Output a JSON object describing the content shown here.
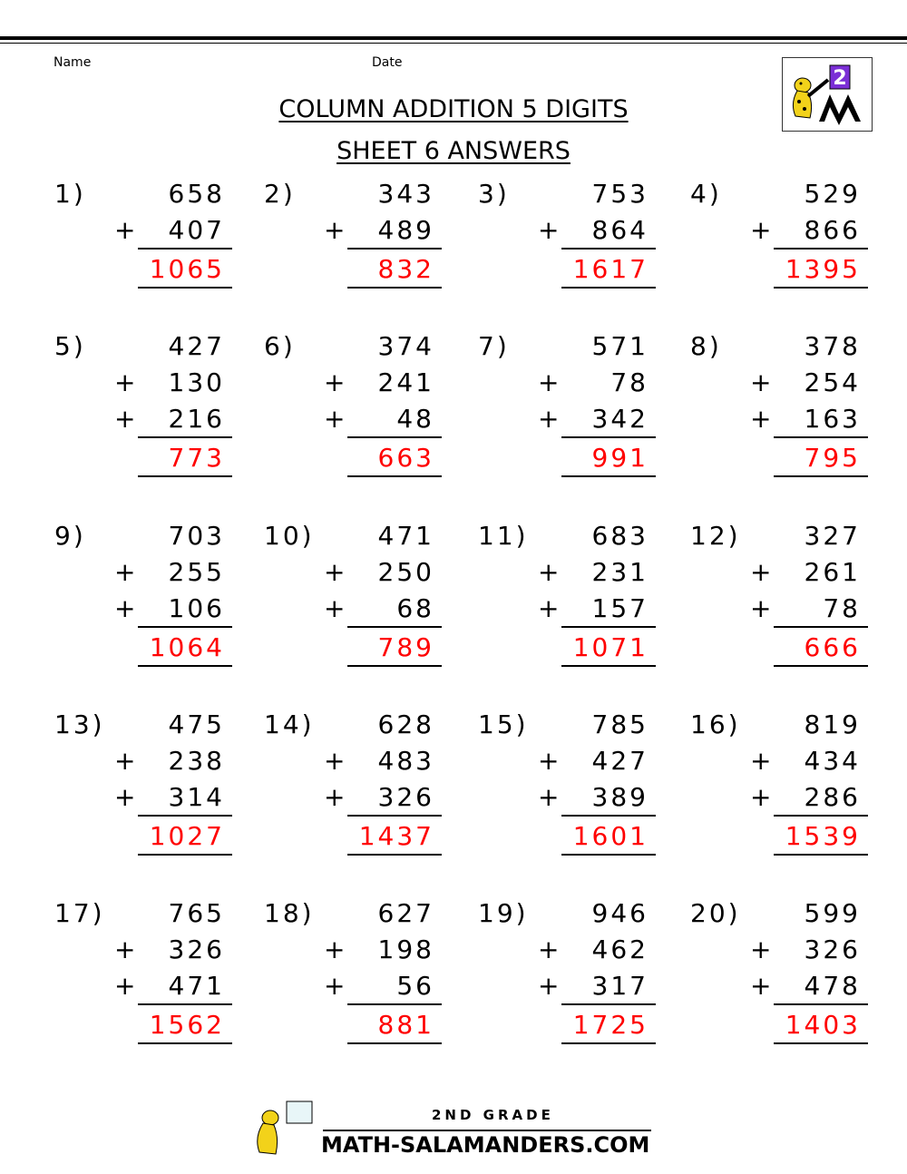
{
  "header": {
    "name_label": "Name",
    "date_label": "Date",
    "title": "COLUMN ADDITION 5 DIGITS",
    "subtitle": "SHEET 6 ANSWERS"
  },
  "logo": {
    "badge": "2",
    "badge_color": "#7b2fd6"
  },
  "colors": {
    "answer": "#ff0000"
  },
  "problems": [
    {
      "label": "1)",
      "addends": [
        "658",
        "407"
      ],
      "answer": "1065"
    },
    {
      "label": "2)",
      "addends": [
        "343",
        "489"
      ],
      "answer": "832"
    },
    {
      "label": "3)",
      "addends": [
        "753",
        "864"
      ],
      "answer": "1617"
    },
    {
      "label": "4)",
      "addends": [
        "529",
        "866"
      ],
      "answer": "1395"
    },
    {
      "label": "5)",
      "addends": [
        "427",
        "130",
        "216"
      ],
      "answer": "773"
    },
    {
      "label": "6)",
      "addends": [
        "374",
        "241",
        "48"
      ],
      "answer": "663"
    },
    {
      "label": "7)",
      "addends": [
        "571",
        "78",
        "342"
      ],
      "answer": "991"
    },
    {
      "label": "8)",
      "addends": [
        "378",
        "254",
        "163"
      ],
      "answer": "795"
    },
    {
      "label": "9)",
      "addends": [
        "703",
        "255",
        "106"
      ],
      "answer": "1064"
    },
    {
      "label": "10)",
      "addends": [
        "471",
        "250",
        "68"
      ],
      "answer": "789"
    },
    {
      "label": "11)",
      "addends": [
        "683",
        "231",
        "157"
      ],
      "answer": "1071"
    },
    {
      "label": "12)",
      "addends": [
        "327",
        "261",
        "78"
      ],
      "answer": "666"
    },
    {
      "label": "13)",
      "addends": [
        "475",
        "238",
        "314"
      ],
      "answer": "1027"
    },
    {
      "label": "14)",
      "addends": [
        "628",
        "483",
        "326"
      ],
      "answer": "1437"
    },
    {
      "label": "15)",
      "addends": [
        "785",
        "427",
        "389"
      ],
      "answer": "1601"
    },
    {
      "label": "16)",
      "addends": [
        "819",
        "434",
        "286"
      ],
      "answer": "1539"
    },
    {
      "label": "17)",
      "addends": [
        "765",
        "326",
        "471"
      ],
      "answer": "1562"
    },
    {
      "label": "18)",
      "addends": [
        "627",
        "198",
        "56"
      ],
      "answer": "881"
    },
    {
      "label": "19)",
      "addends": [
        "946",
        "462",
        "317"
      ],
      "answer": "1725"
    },
    {
      "label": "20)",
      "addends": [
        "599",
        "326",
        "478"
      ],
      "answer": "1403"
    }
  ],
  "plus_sign": "+",
  "footer": {
    "line1": "2ND GRADE",
    "line2": "MATH-SALAMANDERS.COM"
  }
}
